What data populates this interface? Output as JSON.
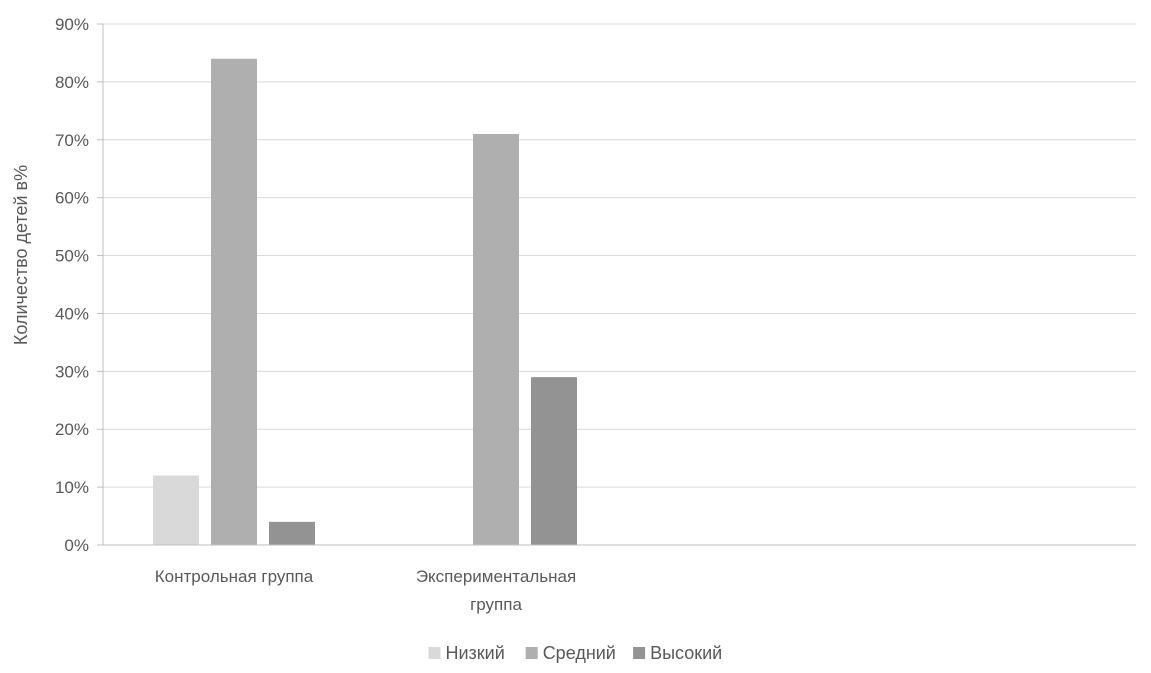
{
  "chart_data": {
    "type": "bar",
    "categories": [
      [
        "Контрольная группа"
      ],
      [
        "Экспериментальная",
        "группа"
      ]
    ],
    "series": [
      {
        "name": "Низкий",
        "values": [
          12,
          0
        ],
        "color": "#d9d9d9"
      },
      {
        "name": "Средний",
        "values": [
          84,
          71
        ],
        "color": "#afafaf"
      },
      {
        "name": "Высокий",
        "values": [
          4,
          29
        ],
        "color": "#939393"
      }
    ],
    "ylabel": "Количество детей в%",
    "xlabel": "",
    "ylim": [
      0,
      90
    ],
    "yticks": [
      0,
      10,
      20,
      30,
      40,
      50,
      60,
      70,
      80,
      90
    ],
    "ytick_labels": [
      "0%",
      "10%",
      "20%",
      "30%",
      "40%",
      "50%",
      "60%",
      "70%",
      "80%",
      "90%"
    ],
    "grid": true,
    "legend_position": "bottom",
    "gridline_color": "#d9d9d9"
  }
}
